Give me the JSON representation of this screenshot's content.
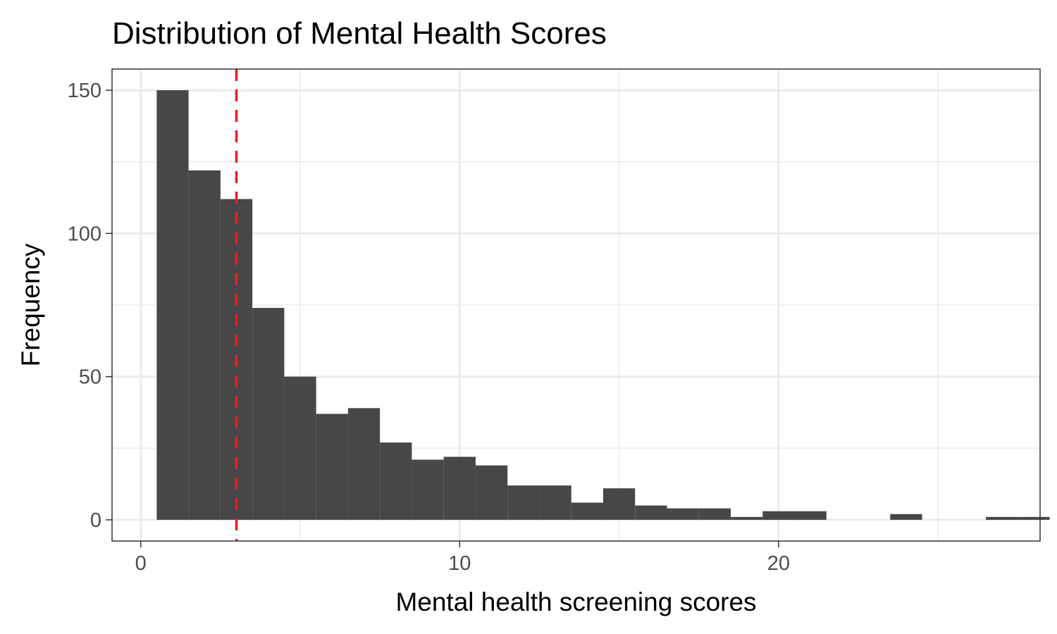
{
  "chart_data": {
    "type": "bar",
    "title": "Distribution of Mental Health Scores",
    "xlabel": "Mental health screening scores",
    "ylabel": "Frequency",
    "xlim": [
      -0.9,
      28.2
    ],
    "ylim": [
      -7.4,
      157.4
    ],
    "x_ticks": [
      0,
      10,
      20
    ],
    "x_minor_ticks": [
      5,
      15,
      25
    ],
    "y_ticks": [
      0,
      50,
      100,
      150
    ],
    "y_minor_ticks": [
      25,
      75,
      125
    ],
    "bin_width": 1,
    "bin_centers": [
      1,
      2,
      3,
      4,
      5,
      6,
      7,
      8,
      9,
      10,
      11,
      12,
      13,
      14,
      15,
      16,
      17,
      18,
      19,
      20,
      21,
      22,
      23,
      24,
      25,
      26,
      27,
      28
    ],
    "values": [
      150,
      122,
      112,
      74,
      50,
      37,
      39,
      27,
      21,
      22,
      19,
      12,
      12,
      6,
      11,
      5,
      4,
      4,
      1,
      3,
      3,
      0,
      0,
      2,
      0,
      0,
      1,
      1
    ],
    "reference_line": {
      "x": 3,
      "style": "dashed",
      "color": "#ee1c25"
    },
    "bar_color": "#474747",
    "grid": true,
    "panel_border": true
  }
}
